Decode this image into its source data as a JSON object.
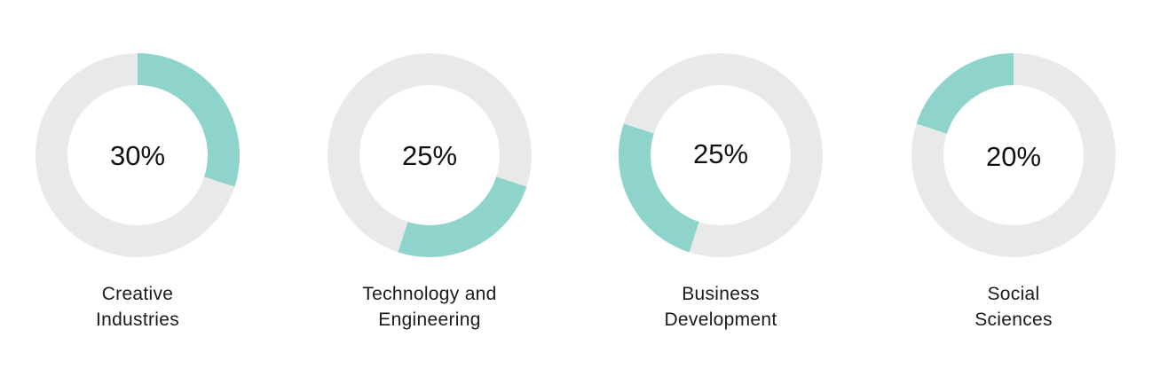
{
  "chart_data": {
    "type": "pie",
    "colors": {
      "segment": "#8fd3cd",
      "track": "#e8eaea"
    },
    "charts": [
      {
        "label_lines": [
          "Creative",
          "Industries"
        ],
        "value": 30,
        "value_label": "30%",
        "start_percent": 0
      },
      {
        "label_lines": [
          "Technology and",
          "Engineering"
        ],
        "value": 25,
        "value_label": "25%",
        "start_percent": 30
      },
      {
        "label_lines": [
          "Business",
          "Development"
        ],
        "value": 25,
        "value_label": "25%",
        "start_percent": 55
      },
      {
        "label_lines": [
          "Social",
          "Sciences"
        ],
        "value": 20,
        "value_label": "20%",
        "start_percent": 80
      }
    ]
  }
}
